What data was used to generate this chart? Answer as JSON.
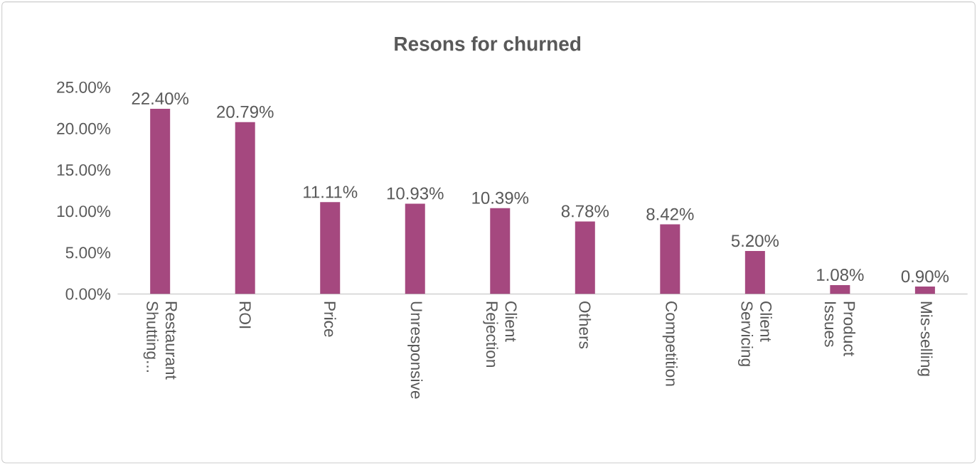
{
  "chart_data": {
    "type": "bar",
    "title": "Resons for churned",
    "categories": [
      "Restaurant Shutting...",
      "ROI",
      "Price",
      "Unresponsive",
      "Client Rejection",
      "Others",
      "Competition",
      "Client Servicing",
      "Product Issues",
      "Mis-selling"
    ],
    "values": [
      22.4,
      20.79,
      11.11,
      10.93,
      10.39,
      8.78,
      8.42,
      5.2,
      1.08,
      0.9
    ],
    "value_labels": [
      "22.40%",
      "20.79%",
      "11.11%",
      "10.93%",
      "10.39%",
      "8.78%",
      "8.42%",
      "5.20%",
      "1.08%",
      "0.90%"
    ],
    "color": "#a5487f",
    "ylim": [
      0,
      25
    ],
    "yticks": [
      {
        "value": 0,
        "label": "0.00%"
      },
      {
        "value": 5,
        "label": "5.00%"
      },
      {
        "value": 10,
        "label": "10.00%"
      },
      {
        "value": 15,
        "label": "15.00%"
      },
      {
        "value": 20,
        "label": "20.00%"
      },
      {
        "value": 25,
        "label": "25.00%"
      }
    ],
    "grid": false
  }
}
